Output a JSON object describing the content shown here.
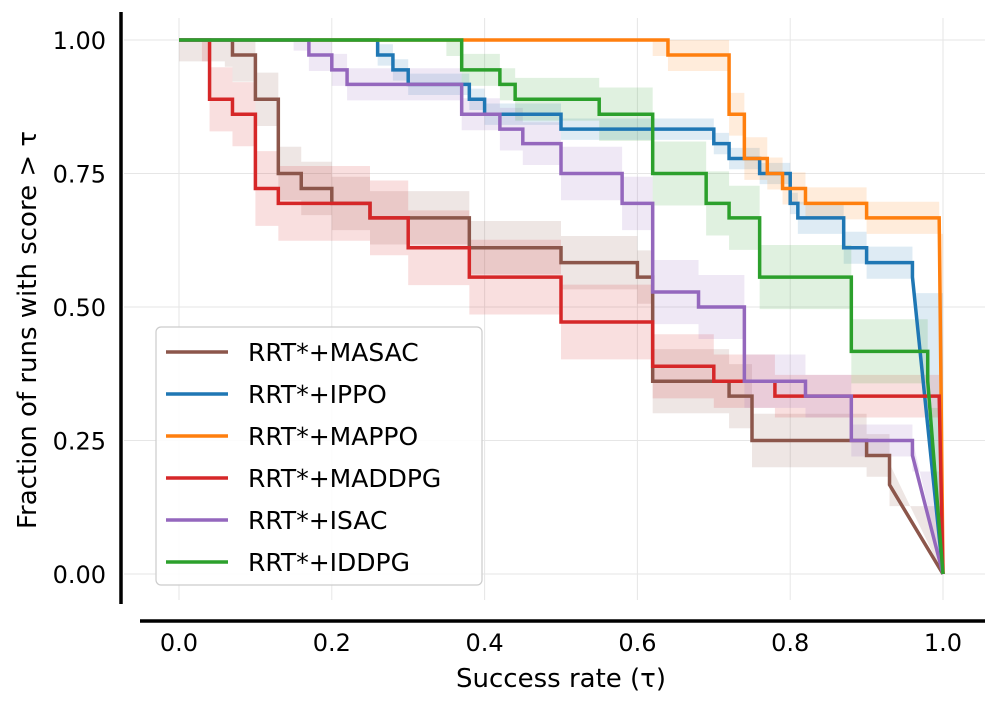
{
  "chart_data": {
    "type": "line",
    "xlabel": "Success rate (τ)",
    "ylabel": "Fraction of runs with score > τ",
    "xlim": [
      -0.05,
      1.05
    ],
    "ylim": [
      -0.05,
      1.05
    ],
    "xticks": [
      "0.0",
      "0.2",
      "0.4",
      "0.6",
      "0.8",
      "1.0"
    ],
    "yticks": [
      "0.00",
      "0.25",
      "0.50",
      "0.75",
      "1.00"
    ],
    "xtick_values": [
      0,
      0.2,
      0.4,
      0.6,
      0.8,
      1.0
    ],
    "ytick_values": [
      0,
      0.25,
      0.5,
      0.75,
      1.0
    ],
    "grid": true,
    "legend_position": "lower-left",
    "series": [
      {
        "name": "RRT*+MASAC",
        "color": "#8c564b",
        "points": [
          [
            0,
            1
          ],
          [
            0.06,
            1
          ],
          [
            0.07,
            0.972
          ],
          [
            0.1,
            0.889
          ],
          [
            0.13,
            0.75
          ],
          [
            0.16,
            0.722
          ],
          [
            0.2,
            0.694
          ],
          [
            0.25,
            0.667
          ],
          [
            0.38,
            0.611
          ],
          [
            0.5,
            0.583
          ],
          [
            0.6,
            0.556
          ],
          [
            0.62,
            0.361
          ],
          [
            0.72,
            0.333
          ],
          [
            0.75,
            0.25
          ],
          [
            0.9,
            0.222
          ],
          [
            0.93,
            0.167
          ],
          [
            1,
            0
          ]
        ],
        "band": [
          0.04,
          0.05,
          0.05,
          0.05,
          0.05,
          0.05,
          0.05,
          0.05,
          0.05,
          0.05,
          0.05,
          0.06,
          0.06,
          0.05,
          0.04,
          0.04,
          0
        ]
      },
      {
        "name": "RRT*+IPPO",
        "color": "#1f77b4",
        "points": [
          [
            0,
            1
          ],
          [
            0.24,
            1
          ],
          [
            0.26,
            0.972
          ],
          [
            0.28,
            0.944
          ],
          [
            0.3,
            0.917
          ],
          [
            0.38,
            0.889
          ],
          [
            0.4,
            0.861
          ],
          [
            0.5,
            0.833
          ],
          [
            0.7,
            0.806
          ],
          [
            0.72,
            0.778
          ],
          [
            0.76,
            0.75
          ],
          [
            0.8,
            0.694
          ],
          [
            0.81,
            0.667
          ],
          [
            0.87,
            0.611
          ],
          [
            0.9,
            0.583
          ],
          [
            0.96,
            0.556
          ],
          [
            1,
            0
          ]
        ],
        "band": [
          0,
          0,
          0.02,
          0.02,
          0.02,
          0.02,
          0.02,
          0.02,
          0.02,
          0.02,
          0.02,
          0.02,
          0.03,
          0.03,
          0.03,
          0.03,
          0
        ]
      },
      {
        "name": "RRT*+MAPPO",
        "color": "#ff7f0e",
        "points": [
          [
            0,
            1
          ],
          [
            0.62,
            1
          ],
          [
            0.64,
            0.972
          ],
          [
            0.72,
            0.861
          ],
          [
            0.74,
            0.778
          ],
          [
            0.77,
            0.75
          ],
          [
            0.79,
            0.722
          ],
          [
            0.82,
            0.694
          ],
          [
            0.9,
            0.667
          ],
          [
            0.995,
            0.667
          ],
          [
            1,
            0
          ]
        ],
        "band": [
          0,
          0.03,
          0.03,
          0.04,
          0.04,
          0.03,
          0.03,
          0.03,
          0.03,
          0.03,
          0
        ]
      },
      {
        "name": "RRT*+MADDPG",
        "color": "#d62728",
        "points": [
          [
            0,
            1
          ],
          [
            0.03,
            1
          ],
          [
            0.04,
            0.889
          ],
          [
            0.07,
            0.861
          ],
          [
            0.1,
            0.722
          ],
          [
            0.13,
            0.694
          ],
          [
            0.25,
            0.667
          ],
          [
            0.3,
            0.611
          ],
          [
            0.38,
            0.556
          ],
          [
            0.5,
            0.472
          ],
          [
            0.62,
            0.389
          ],
          [
            0.7,
            0.361
          ],
          [
            0.78,
            0.333
          ],
          [
            0.995,
            0.333
          ],
          [
            1,
            0
          ]
        ],
        "band": [
          0,
          0.04,
          0.06,
          0.06,
          0.07,
          0.07,
          0.07,
          0.07,
          0.07,
          0.07,
          0.06,
          0.05,
          0.04,
          0.04,
          0
        ]
      },
      {
        "name": "RRT*+ISAC",
        "color": "#9467bd",
        "points": [
          [
            0,
            1
          ],
          [
            0.15,
            1
          ],
          [
            0.17,
            0.972
          ],
          [
            0.2,
            0.944
          ],
          [
            0.22,
            0.917
          ],
          [
            0.37,
            0.861
          ],
          [
            0.42,
            0.833
          ],
          [
            0.45,
            0.806
          ],
          [
            0.5,
            0.75
          ],
          [
            0.58,
            0.694
          ],
          [
            0.62,
            0.528
          ],
          [
            0.68,
            0.5
          ],
          [
            0.74,
            0.361
          ],
          [
            0.82,
            0.333
          ],
          [
            0.88,
            0.25
          ],
          [
            0.96,
            0.222
          ],
          [
            1,
            0
          ]
        ],
        "band": [
          0,
          0.02,
          0.03,
          0.03,
          0.03,
          0.03,
          0.04,
          0.04,
          0.05,
          0.05,
          0.06,
          0.06,
          0.05,
          0.04,
          0.03,
          0.03,
          0
        ]
      },
      {
        "name": "RRT*+IDDPG",
        "color": "#2ca02c",
        "points": [
          [
            0,
            1
          ],
          [
            0.35,
            1
          ],
          [
            0.37,
            0.944
          ],
          [
            0.42,
            0.917
          ],
          [
            0.44,
            0.889
          ],
          [
            0.55,
            0.861
          ],
          [
            0.62,
            0.75
          ],
          [
            0.69,
            0.694
          ],
          [
            0.72,
            0.667
          ],
          [
            0.76,
            0.556
          ],
          [
            0.88,
            0.417
          ],
          [
            0.98,
            0.361
          ],
          [
            1,
            0
          ]
        ],
        "band": [
          0,
          0.03,
          0.03,
          0.03,
          0.04,
          0.05,
          0.06,
          0.06,
          0.06,
          0.06,
          0.06,
          0.05,
          0
        ]
      }
    ]
  }
}
